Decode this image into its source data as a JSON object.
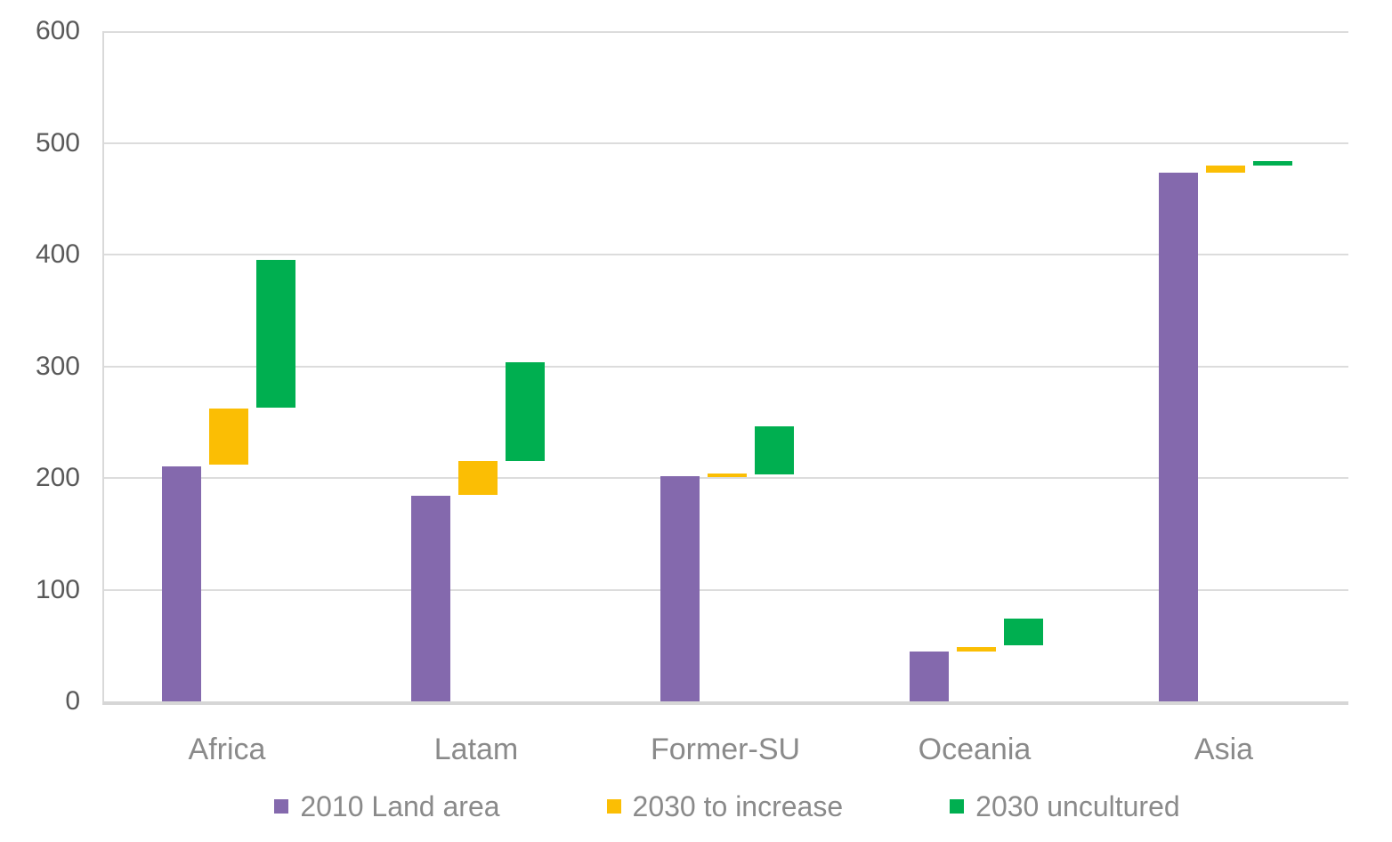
{
  "chart_data": {
    "type": "bar",
    "subtype": "floating-waterfall-clustered",
    "title": "",
    "xlabel": "",
    "ylabel": "",
    "ylim": [
      0,
      600
    ],
    "ytick_step": 100,
    "yticks": [
      0,
      100,
      200,
      300,
      400,
      500,
      600
    ],
    "grid": "horizontal",
    "legend_position": "bottom",
    "categories": [
      "Africa",
      "Latam",
      "Former-SU",
      "Oceania",
      "Asia"
    ],
    "series": [
      {
        "name": "2010 Land area",
        "color": "#8469AD",
        "segments": [
          {
            "from": 0,
            "to": 210
          },
          {
            "from": 0,
            "to": 184
          },
          {
            "from": 0,
            "to": 202
          },
          {
            "from": 0,
            "to": 45
          },
          {
            "from": 0,
            "to": 473
          }
        ]
      },
      {
        "name": "2030 to increase",
        "color": "#FBBE04",
        "segments": [
          {
            "from": 212,
            "to": 262
          },
          {
            "from": 185,
            "to": 215
          },
          {
            "from": 201,
            "to": 204
          },
          {
            "from": 45,
            "to": 49
          },
          {
            "from": 473,
            "to": 480
          }
        ]
      },
      {
        "name": "2030 uncultured",
        "color": "#00AF50",
        "segments": [
          {
            "from": 263,
            "to": 395
          },
          {
            "from": 215,
            "to": 304
          },
          {
            "from": 203,
            "to": 246
          },
          {
            "from": 50,
            "to": 74
          },
          {
            "from": 480,
            "to": 484
          }
        ]
      }
    ]
  }
}
